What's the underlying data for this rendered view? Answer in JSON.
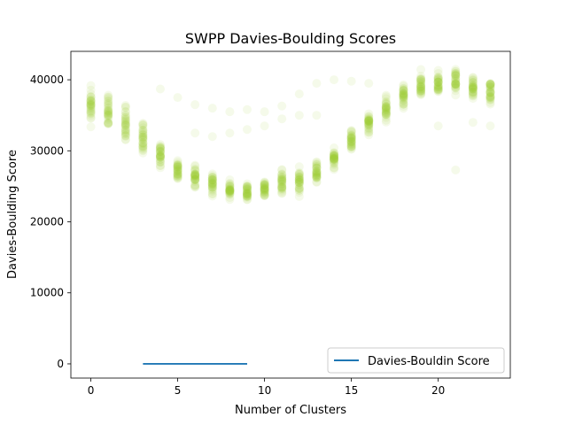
{
  "chart_data": {
    "type": "scatter",
    "title": "SWPP Davies-Boulding Scores",
    "xlabel": "Number of Clusters",
    "ylabel": "Davies-Boulding Score",
    "xlim": [
      -1.15,
      24.15
    ],
    "ylim": [
      -2000,
      44000
    ],
    "xticks": [
      0,
      5,
      10,
      15,
      20
    ],
    "yticks": [
      0,
      10000,
      20000,
      30000,
      40000
    ],
    "grid": false,
    "legend_position": "lower-right",
    "scatter": {
      "color": "#9acd32",
      "columns": [
        {
          "x": 0,
          "y_min": 32000,
          "y_max": 41000,
          "center": 36800
        },
        {
          "x": 1,
          "y_min": 32000,
          "y_max": 40500,
          "center": 35600
        },
        {
          "x": 2,
          "y_min": 31000,
          "y_max": 40000,
          "center": 34200
        },
        {
          "x": 3,
          "y_min": 28500,
          "y_max": 37500,
          "center": 32000
        },
        {
          "x": 4,
          "y_min": 27000,
          "y_max": 33500,
          "center": 29500
        },
        {
          "x": 5,
          "y_min": 25500,
          "y_max": 31000,
          "center": 27300
        },
        {
          "x": 6,
          "y_min": 24500,
          "y_max": 30000,
          "center": 26200
        },
        {
          "x": 7,
          "y_min": 23500,
          "y_max": 28500,
          "center": 25400
        },
        {
          "x": 8,
          "y_min": 23000,
          "y_max": 27000,
          "center": 24700
        },
        {
          "x": 9,
          "y_min": 22500,
          "y_max": 27000,
          "center": 24300
        },
        {
          "x": 10,
          "y_min": 23000,
          "y_max": 27500,
          "center": 24700
        },
        {
          "x": 11,
          "y_min": 23000,
          "y_max": 29000,
          "center": 25500
        },
        {
          "x": 12,
          "y_min": 23000,
          "y_max": 29500,
          "center": 26000
        },
        {
          "x": 13,
          "y_min": 24000,
          "y_max": 30000,
          "center": 27000
        },
        {
          "x": 14,
          "y_min": 26500,
          "y_max": 32500,
          "center": 28800
        },
        {
          "x": 15,
          "y_min": 29000,
          "y_max": 35000,
          "center": 31500
        },
        {
          "x": 16,
          "y_min": 31000,
          "y_max": 37500,
          "center": 33800
        },
        {
          "x": 17,
          "y_min": 33500,
          "y_max": 39500,
          "center": 36000
        },
        {
          "x": 18,
          "y_min": 35000,
          "y_max": 41500,
          "center": 37800
        },
        {
          "x": 19,
          "y_min": 36000,
          "y_max": 42000,
          "center": 39000
        },
        {
          "x": 20,
          "y_min": 36500,
          "y_max": 42000,
          "center": 39600
        },
        {
          "x": 21,
          "y_min": 36000,
          "y_max": 42000,
          "center": 39800
        },
        {
          "x": 22,
          "y_min": 35500,
          "y_max": 42000,
          "center": 39000
        },
        {
          "x": 23,
          "y_min": 35000,
          "y_max": 41000,
          "center": 38200
        }
      ],
      "outliers": [
        {
          "x": 4,
          "y": 38700
        },
        {
          "x": 5,
          "y": 37500
        },
        {
          "x": 6,
          "y": 36500
        },
        {
          "x": 7,
          "y": 36000
        },
        {
          "x": 8,
          "y": 35500
        },
        {
          "x": 9,
          "y": 35800
        },
        {
          "x": 10,
          "y": 35500
        },
        {
          "x": 11,
          "y": 36300
        },
        {
          "x": 12,
          "y": 38000
        },
        {
          "x": 13,
          "y": 39500
        },
        {
          "x": 14,
          "y": 40000
        },
        {
          "x": 6,
          "y": 32500
        },
        {
          "x": 7,
          "y": 32000
        },
        {
          "x": 8,
          "y": 32500
        },
        {
          "x": 9,
          "y": 33000
        },
        {
          "x": 10,
          "y": 33500
        },
        {
          "x": 11,
          "y": 34500
        },
        {
          "x": 12,
          "y": 35000
        },
        {
          "x": 13,
          "y": 35000
        },
        {
          "x": 15,
          "y": 39800
        },
        {
          "x": 16,
          "y": 39500
        },
        {
          "x": 21,
          "y": 27300
        },
        {
          "x": 20,
          "y": 33500
        },
        {
          "x": 22,
          "y": 34000
        },
        {
          "x": 23,
          "y": 33500
        }
      ]
    },
    "series": [
      {
        "name": "Davies-Bouldin Score",
        "type": "line",
        "color": "#1f77b4",
        "x": [
          3,
          4,
          5,
          6,
          7,
          8,
          9
        ],
        "y": [
          0,
          0,
          0,
          0,
          0,
          0,
          0
        ]
      }
    ]
  }
}
